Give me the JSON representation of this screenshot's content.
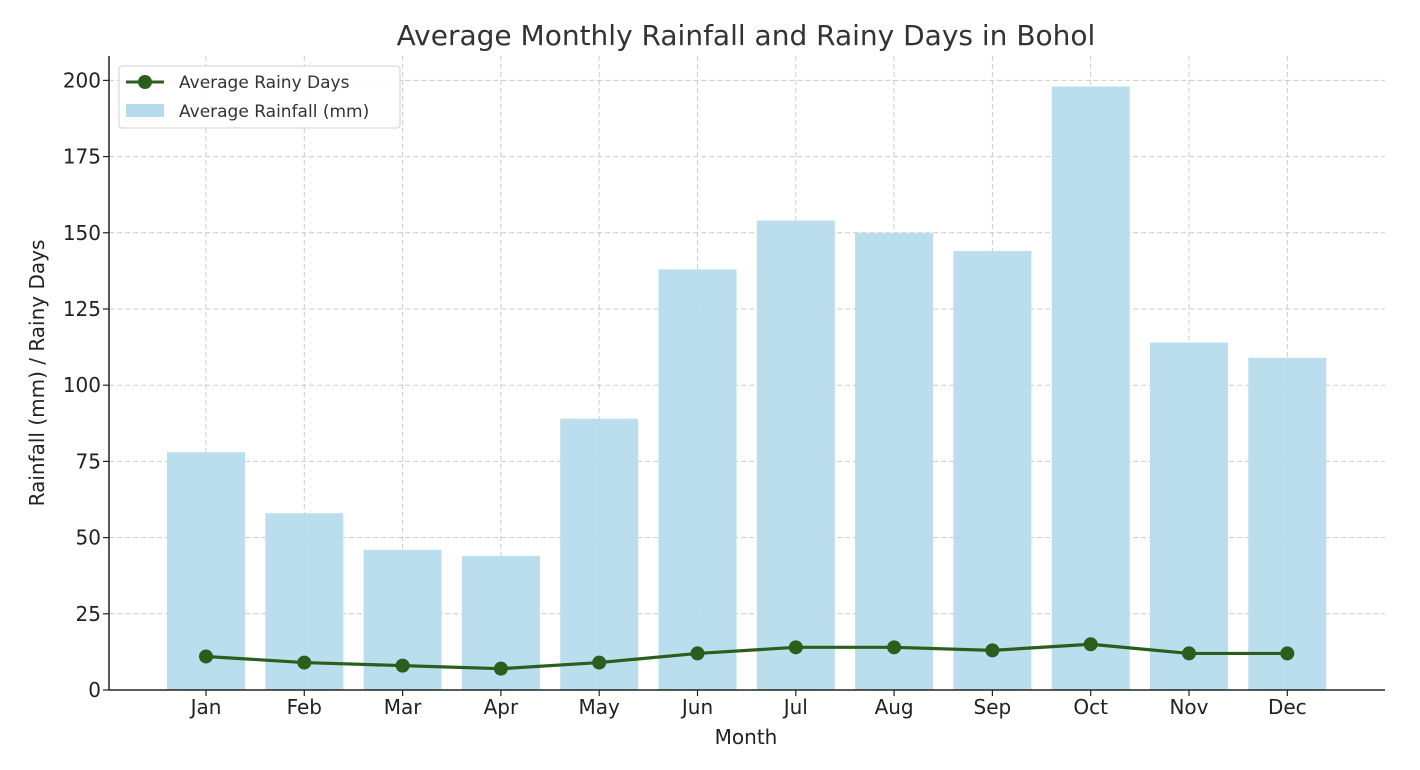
{
  "chart_data": {
    "type": "bar",
    "title": "Average Monthly Rainfall and Rainy Days in Bohol",
    "xlabel": "Month",
    "ylabel": "Rainfall (mm) / Rainy Days",
    "categories": [
      "Jan",
      "Feb",
      "Mar",
      "Apr",
      "May",
      "Jun",
      "Jul",
      "Aug",
      "Sep",
      "Oct",
      "Nov",
      "Dec"
    ],
    "ylim": [
      0,
      208
    ],
    "yticks": [
      0,
      25,
      50,
      75,
      100,
      125,
      150,
      175,
      200
    ],
    "grid": true,
    "legend_position": "top-left",
    "series": [
      {
        "name": "Average Rainfall (mm)",
        "type": "bar",
        "color": "#b4dbec",
        "values": [
          78,
          58,
          46,
          44,
          89,
          138,
          154,
          150,
          144,
          198,
          114,
          109
        ]
      },
      {
        "name": "Average Rainy Days",
        "type": "line",
        "color": "#2a5e1c",
        "values": [
          11,
          9,
          8,
          7,
          9,
          12,
          14,
          14,
          13,
          15,
          12,
          12
        ]
      }
    ]
  }
}
